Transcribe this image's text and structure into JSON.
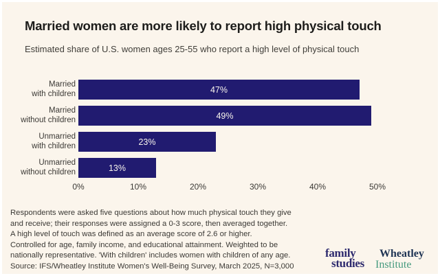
{
  "header": {
    "title": "Married women are more likely to report high physical touch",
    "subtitle": "Estimated share of U.S. women ages 25-55 who report a high level of physical touch"
  },
  "chart_data": {
    "type": "bar",
    "orientation": "horizontal",
    "title": "Married women are more likely to report high physical touch",
    "subtitle": "Estimated share of U.S. women ages 25-55 who report a high level of physical touch",
    "categories": [
      "Married with children",
      "Married without children",
      "Unmarried with children",
      "Unmarried without children"
    ],
    "category_labels_2line": [
      "Married\nwith children",
      "Married\nwithout children",
      "Unmarried\nwith children",
      "Unmarried\nwithout children"
    ],
    "values": [
      47,
      49,
      23,
      13
    ],
    "value_labels": [
      "47%",
      "49%",
      "23%",
      "13%"
    ],
    "value_label_position": "inside-center",
    "x_ticks": [
      "0%",
      "10%",
      "20%",
      "30%",
      "40%",
      "50%"
    ],
    "x_tick_values": [
      0,
      10,
      20,
      30,
      40,
      50
    ],
    "xlim": [
      0,
      50
    ],
    "xlabel": "",
    "ylabel": "",
    "grid": false,
    "legend": "none",
    "bar_color": "#211b70",
    "background_color": "#fbf5ec"
  },
  "footnote": {
    "lines": [
      "Respondents were asked five questions about how much physical touch they give",
      "and receive; their responses were assigned a 0-3 score, then averaged together.",
      "A high level of touch was defined as an average score of 2.6 or higher.",
      "Controlled for age, family income, and educational attainment. Weighted to be",
      "nationally representative. 'With children' includes women with children of any age.",
      "Source: IFS/Wheatley Institute Women's Well-Being Survey, March 2025, N=3,000"
    ]
  },
  "logos": {
    "family_studies": {
      "line1": "family",
      "line2": "studies",
      "color": "#2d2a6e"
    },
    "wheatley": {
      "line1": "Wheatley",
      "line2": "Institute",
      "color_line1": "#1e3353",
      "color_line2": "#459a7e"
    }
  }
}
